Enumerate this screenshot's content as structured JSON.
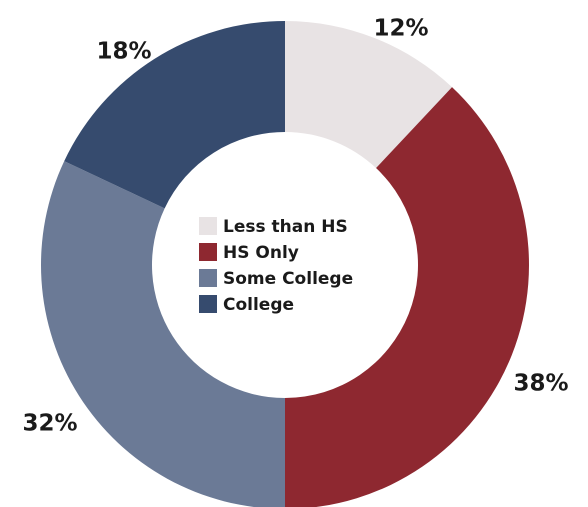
{
  "chart_data": {
    "type": "pie",
    "variant": "donut",
    "categories": [
      "Less than HS",
      "HS Only",
      "Some College",
      "College"
    ],
    "values": [
      12,
      38,
      32,
      18
    ],
    "value_labels": [
      "12%",
      "38%",
      "32%",
      "18%"
    ],
    "colors": [
      "#e8e3e4",
      "#8e2830",
      "#6b7a96",
      "#364b6e"
    ],
    "legend": {
      "placement": "center",
      "entries": [
        "Less than HS",
        "HS Only",
        "Some College",
        "College"
      ]
    },
    "title": ""
  }
}
